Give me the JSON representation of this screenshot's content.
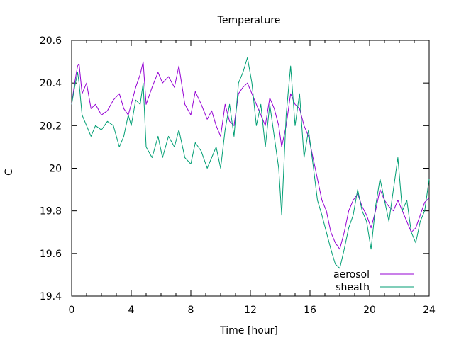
{
  "chart_data": {
    "type": "line",
    "title": "Temperature",
    "xlabel": "Time [hour]",
    "ylabel": "C",
    "xlim": [
      0,
      24
    ],
    "ylim": [
      19.4,
      20.6
    ],
    "xticks": [
      0,
      4,
      8,
      12,
      16,
      20,
      24
    ],
    "xtick_labels": [
      "0",
      "4",
      "8",
      "12",
      "16",
      "20",
      "24"
    ],
    "yticks": [
      19.4,
      19.6,
      19.8,
      20.0,
      20.2,
      20.4,
      20.6
    ],
    "ytick_labels": [
      "19.4",
      "19.6",
      "19.8",
      "20",
      "20.2",
      "20.4",
      "20.6"
    ],
    "grid": false,
    "legend_position": "bottom-right",
    "series": [
      {
        "name": "aerosol",
        "color": "#9400d3",
        "x": [
          0,
          0.2,
          0.4,
          0.5,
          0.7,
          1.0,
          1.3,
          1.6,
          2.0,
          2.4,
          2.8,
          3.2,
          3.5,
          3.8,
          4.0,
          4.3,
          4.6,
          4.8,
          5.0,
          5.4,
          5.8,
          6.1,
          6.5,
          6.9,
          7.2,
          7.6,
          8.0,
          8.3,
          8.7,
          9.1,
          9.4,
          9.7,
          10.0,
          10.3,
          10.6,
          10.9,
          11.2,
          11.5,
          11.8,
          12.1,
          12.4,
          12.7,
          13.0,
          13.3,
          13.6,
          13.9,
          14.1,
          14.4,
          14.7,
          15.0,
          15.3,
          15.6,
          15.9,
          16.2,
          16.5,
          16.8,
          17.1,
          17.4,
          17.7,
          18.0,
          18.3,
          18.6,
          18.9,
          19.2,
          19.5,
          19.8,
          20.1,
          20.4,
          20.7,
          21.0,
          21.3,
          21.6,
          21.9,
          22.2,
          22.5,
          22.8,
          23.1,
          23.4,
          23.7,
          24.0
        ],
        "y": [
          20.3,
          20.4,
          20.48,
          20.49,
          20.35,
          20.4,
          20.28,
          20.3,
          20.25,
          20.27,
          20.32,
          20.35,
          20.28,
          20.25,
          20.3,
          20.38,
          20.44,
          20.5,
          20.3,
          20.38,
          20.45,
          20.4,
          20.43,
          20.38,
          20.48,
          20.3,
          20.25,
          20.36,
          20.3,
          20.23,
          20.27,
          20.2,
          20.15,
          20.3,
          20.22,
          20.2,
          20.35,
          20.38,
          20.4,
          20.35,
          20.3,
          20.25,
          20.2,
          20.33,
          20.28,
          20.2,
          20.1,
          20.2,
          20.35,
          20.3,
          20.28,
          20.2,
          20.15,
          20.05,
          19.95,
          19.85,
          19.8,
          19.7,
          19.65,
          19.62,
          19.7,
          19.8,
          19.85,
          19.88,
          19.82,
          19.78,
          19.72,
          19.8,
          19.9,
          19.85,
          19.82,
          19.8,
          19.85,
          19.8,
          19.75,
          19.7,
          19.72,
          19.78,
          19.84,
          19.86
        ]
      },
      {
        "name": "sheath",
        "color": "#009e73",
        "x": [
          0,
          0.2,
          0.4,
          0.5,
          0.7,
          1.0,
          1.3,
          1.6,
          2.0,
          2.4,
          2.8,
          3.2,
          3.5,
          3.8,
          4.0,
          4.3,
          4.6,
          4.8,
          5.0,
          5.4,
          5.8,
          6.1,
          6.5,
          6.9,
          7.2,
          7.6,
          8.0,
          8.3,
          8.7,
          9.1,
          9.4,
          9.7,
          10.0,
          10.3,
          10.6,
          10.9,
          11.2,
          11.5,
          11.8,
          12.1,
          12.4,
          12.7,
          13.0,
          13.3,
          13.6,
          13.9,
          14.1,
          14.4,
          14.7,
          15.0,
          15.3,
          15.6,
          15.9,
          16.2,
          16.5,
          16.8,
          17.1,
          17.4,
          17.7,
          18.0,
          18.3,
          18.6,
          18.9,
          19.2,
          19.5,
          19.8,
          20.1,
          20.4,
          20.7,
          21.0,
          21.3,
          21.6,
          21.9,
          22.2,
          22.5,
          22.8,
          23.1,
          23.4,
          23.7,
          24.0
        ],
        "y": [
          20.3,
          20.38,
          20.45,
          20.4,
          20.25,
          20.2,
          20.15,
          20.2,
          20.18,
          20.22,
          20.2,
          20.1,
          20.15,
          20.25,
          20.2,
          20.32,
          20.3,
          20.4,
          20.1,
          20.05,
          20.15,
          20.05,
          20.15,
          20.1,
          20.18,
          20.05,
          20.02,
          20.12,
          20.08,
          20.0,
          20.05,
          20.1,
          20.0,
          20.18,
          20.3,
          20.15,
          20.4,
          20.45,
          20.52,
          20.4,
          20.2,
          20.3,
          20.1,
          20.3,
          20.15,
          20.0,
          19.78,
          20.25,
          20.48,
          20.2,
          20.35,
          20.05,
          20.18,
          20.02,
          19.85,
          19.78,
          19.7,
          19.62,
          19.55,
          19.53,
          19.62,
          19.72,
          19.78,
          19.9,
          19.8,
          19.75,
          19.62,
          19.82,
          19.95,
          19.85,
          19.75,
          19.9,
          20.05,
          19.8,
          19.85,
          19.7,
          19.65,
          19.75,
          19.8,
          19.95
        ]
      }
    ]
  }
}
